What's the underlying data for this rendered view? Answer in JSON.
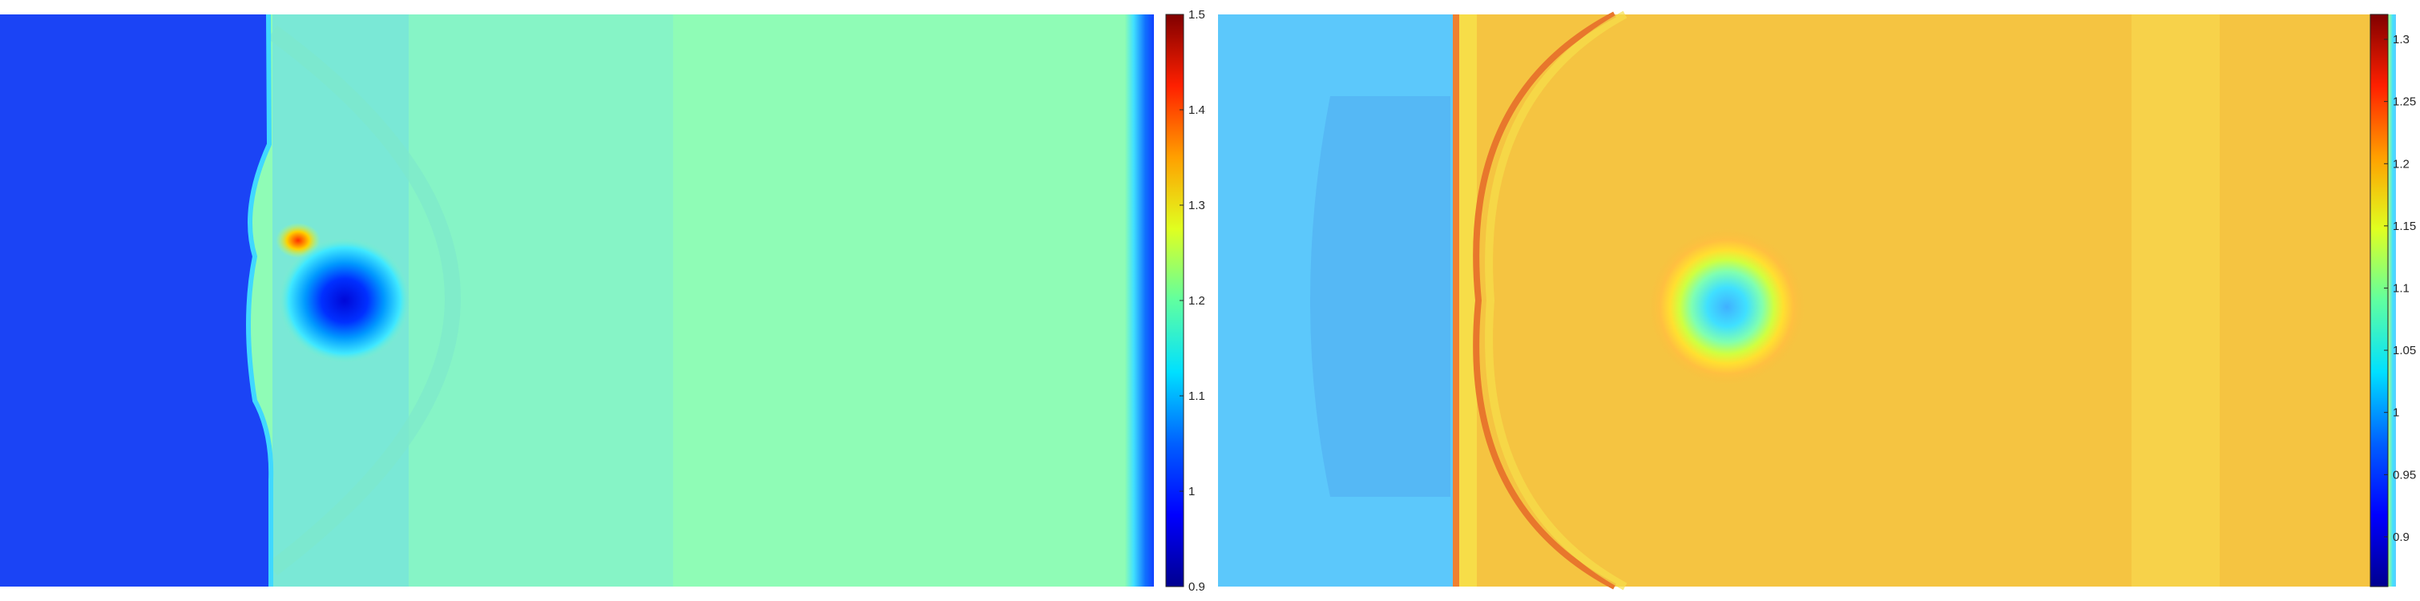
{
  "chart_data": [
    {
      "type": "heatmap",
      "panel": "left",
      "colormap": "jet",
      "colorbar": {
        "range": [
          0.9,
          1.5
        ],
        "ticks": [
          0.9,
          1,
          1.1,
          1.2,
          1.3,
          1.4,
          1.5
        ],
        "tick_labels": [
          "0.9",
          "1",
          "1.1",
          "1.2",
          "1.3",
          "1.4",
          "1.5"
        ],
        "placement": "right"
      },
      "regions": {
        "unshocked_value": 0.96,
        "post_shock_value": 1.17,
        "far_field_value": 1.2,
        "vortex_core_value": 0.91,
        "peak_value": 1.46,
        "right_boundary_value": 0.95
      }
    },
    {
      "type": "heatmap",
      "panel": "right",
      "colormap": "jet",
      "colorbar": {
        "range": [
          0.86,
          1.32
        ],
        "ticks": [
          0.9,
          0.95,
          1,
          1.05,
          1.1,
          1.15,
          1.2,
          1.25,
          1.3
        ],
        "tick_labels": [
          "0.9",
          "0.95",
          "1",
          "1.05",
          "1.1",
          "1.15",
          "1.2",
          "1.25",
          "1.3"
        ],
        "placement": "right"
      },
      "regions": {
        "unshocked_value": 1.05,
        "post_shock_value": 1.17,
        "shock_front_peak": 1.28,
        "vortex_ring_value": 1.12,
        "vortex_core_value": 1.05,
        "right_boundary_value": 1.02
      }
    }
  ],
  "colors": {
    "colorbar_stops": [
      "#00008f",
      "#0000ff",
      "#0080ff",
      "#00ffff",
      "#80ff80",
      "#ffff00",
      "#ff8000",
      "#ff0000",
      "#800000"
    ]
  }
}
